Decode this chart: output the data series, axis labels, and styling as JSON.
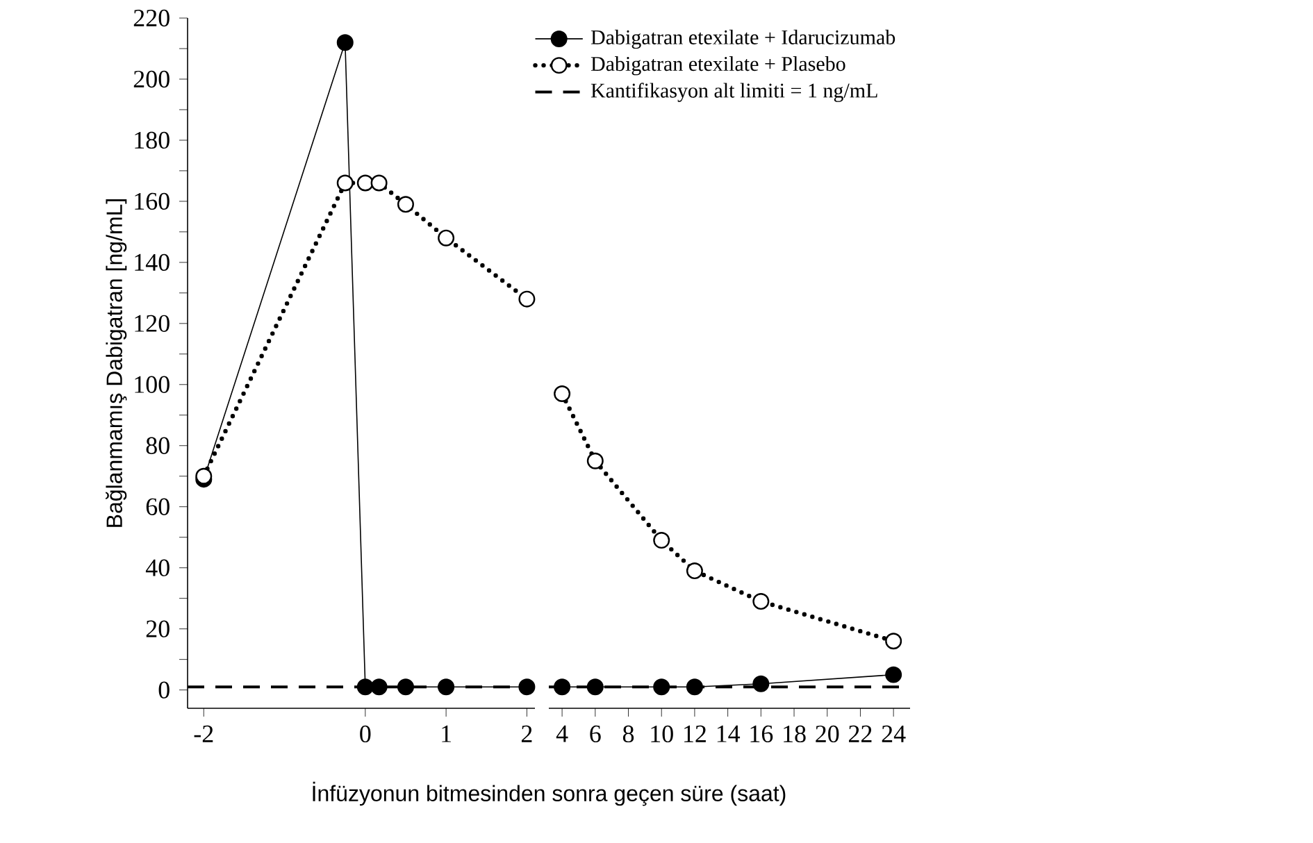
{
  "chart_data": [
    {
      "type": "line",
      "ylabel": "Bağlanmamış Dabigatran  [ng/mL]",
      "xlim": [
        -2.2,
        2.1
      ],
      "xticks": [
        -2,
        0,
        1,
        2
      ],
      "ylim": [
        -6,
        220
      ],
      "yticks": [
        0,
        {
          "value": 10,
          "label": null
        },
        20,
        {
          "value": 30,
          "label": null
        },
        40,
        {
          "value": 50,
          "label": null
        },
        60,
        {
          "value": 70,
          "label": null
        },
        80,
        {
          "value": 90,
          "label": null
        },
        100,
        {
          "value": 110,
          "label": null
        },
        120,
        {
          "value": 130,
          "label": null
        },
        140,
        {
          "value": 150,
          "label": null
        },
        160,
        {
          "value": 170,
          "label": null
        },
        180,
        {
          "value": 190,
          "label": null
        },
        200,
        {
          "value": 210,
          "label": null
        },
        220
      ],
      "marker": "circle",
      "series": [
        {
          "color": "#000000",
          "line_style": "solid",
          "x": [
            -2,
            -0.25,
            0,
            0.17,
            0.5,
            1,
            2
          ],
          "values": [
            69,
            212,
            1,
            1,
            1,
            1,
            1
          ]
        },
        {
          "color": "#000000",
          "line_style": "dotted",
          "x": [
            -2,
            -0.25,
            0,
            0.17,
            0.5,
            1,
            2
          ],
          "values": [
            70,
            166,
            166,
            166,
            159,
            148,
            128
          ]
        }
      ],
      "ref_lines": [
        {
          "axis": "y",
          "value": 1,
          "line_style": "dashed",
          "color": "#000000"
        }
      ]
    },
    {
      "type": "line",
      "xlabel": "İnfüzyonun bitmesinden sonra geçen süre (saat)",
      "xlim": [
        3.2,
        25
      ],
      "xticks": [
        4,
        6,
        8,
        10,
        12,
        14,
        16,
        18,
        20,
        22,
        24
      ],
      "ylim": [
        -6,
        220
      ],
      "tick_labels": "x",
      "marker": "circle",
      "legend": "top right",
      "series": [
        {
          "name": "Dabigatran etexilate + Idarucizumab",
          "color": "#000000",
          "line_style": "solid",
          "x": [
            4,
            6,
            10,
            12,
            16,
            24
          ],
          "values": [
            1,
            1,
            1,
            1,
            2,
            5
          ]
        },
        {
          "name": "Dabigatran etexilate + Plasebo",
          "color": "#000000",
          "line_style": "dotted",
          "x": [
            4,
            6,
            10,
            12,
            16,
            24
          ],
          "values": [
            97,
            75,
            49,
            39,
            29,
            16
          ]
        }
      ],
      "ref_lines": [
        {
          "axis": "y",
          "value": 1,
          "label": "Kantifikasyon alt limiti = 1 ng/mL",
          "line_style": "dashed",
          "color": "#000000"
        }
      ]
    }
  ]
}
